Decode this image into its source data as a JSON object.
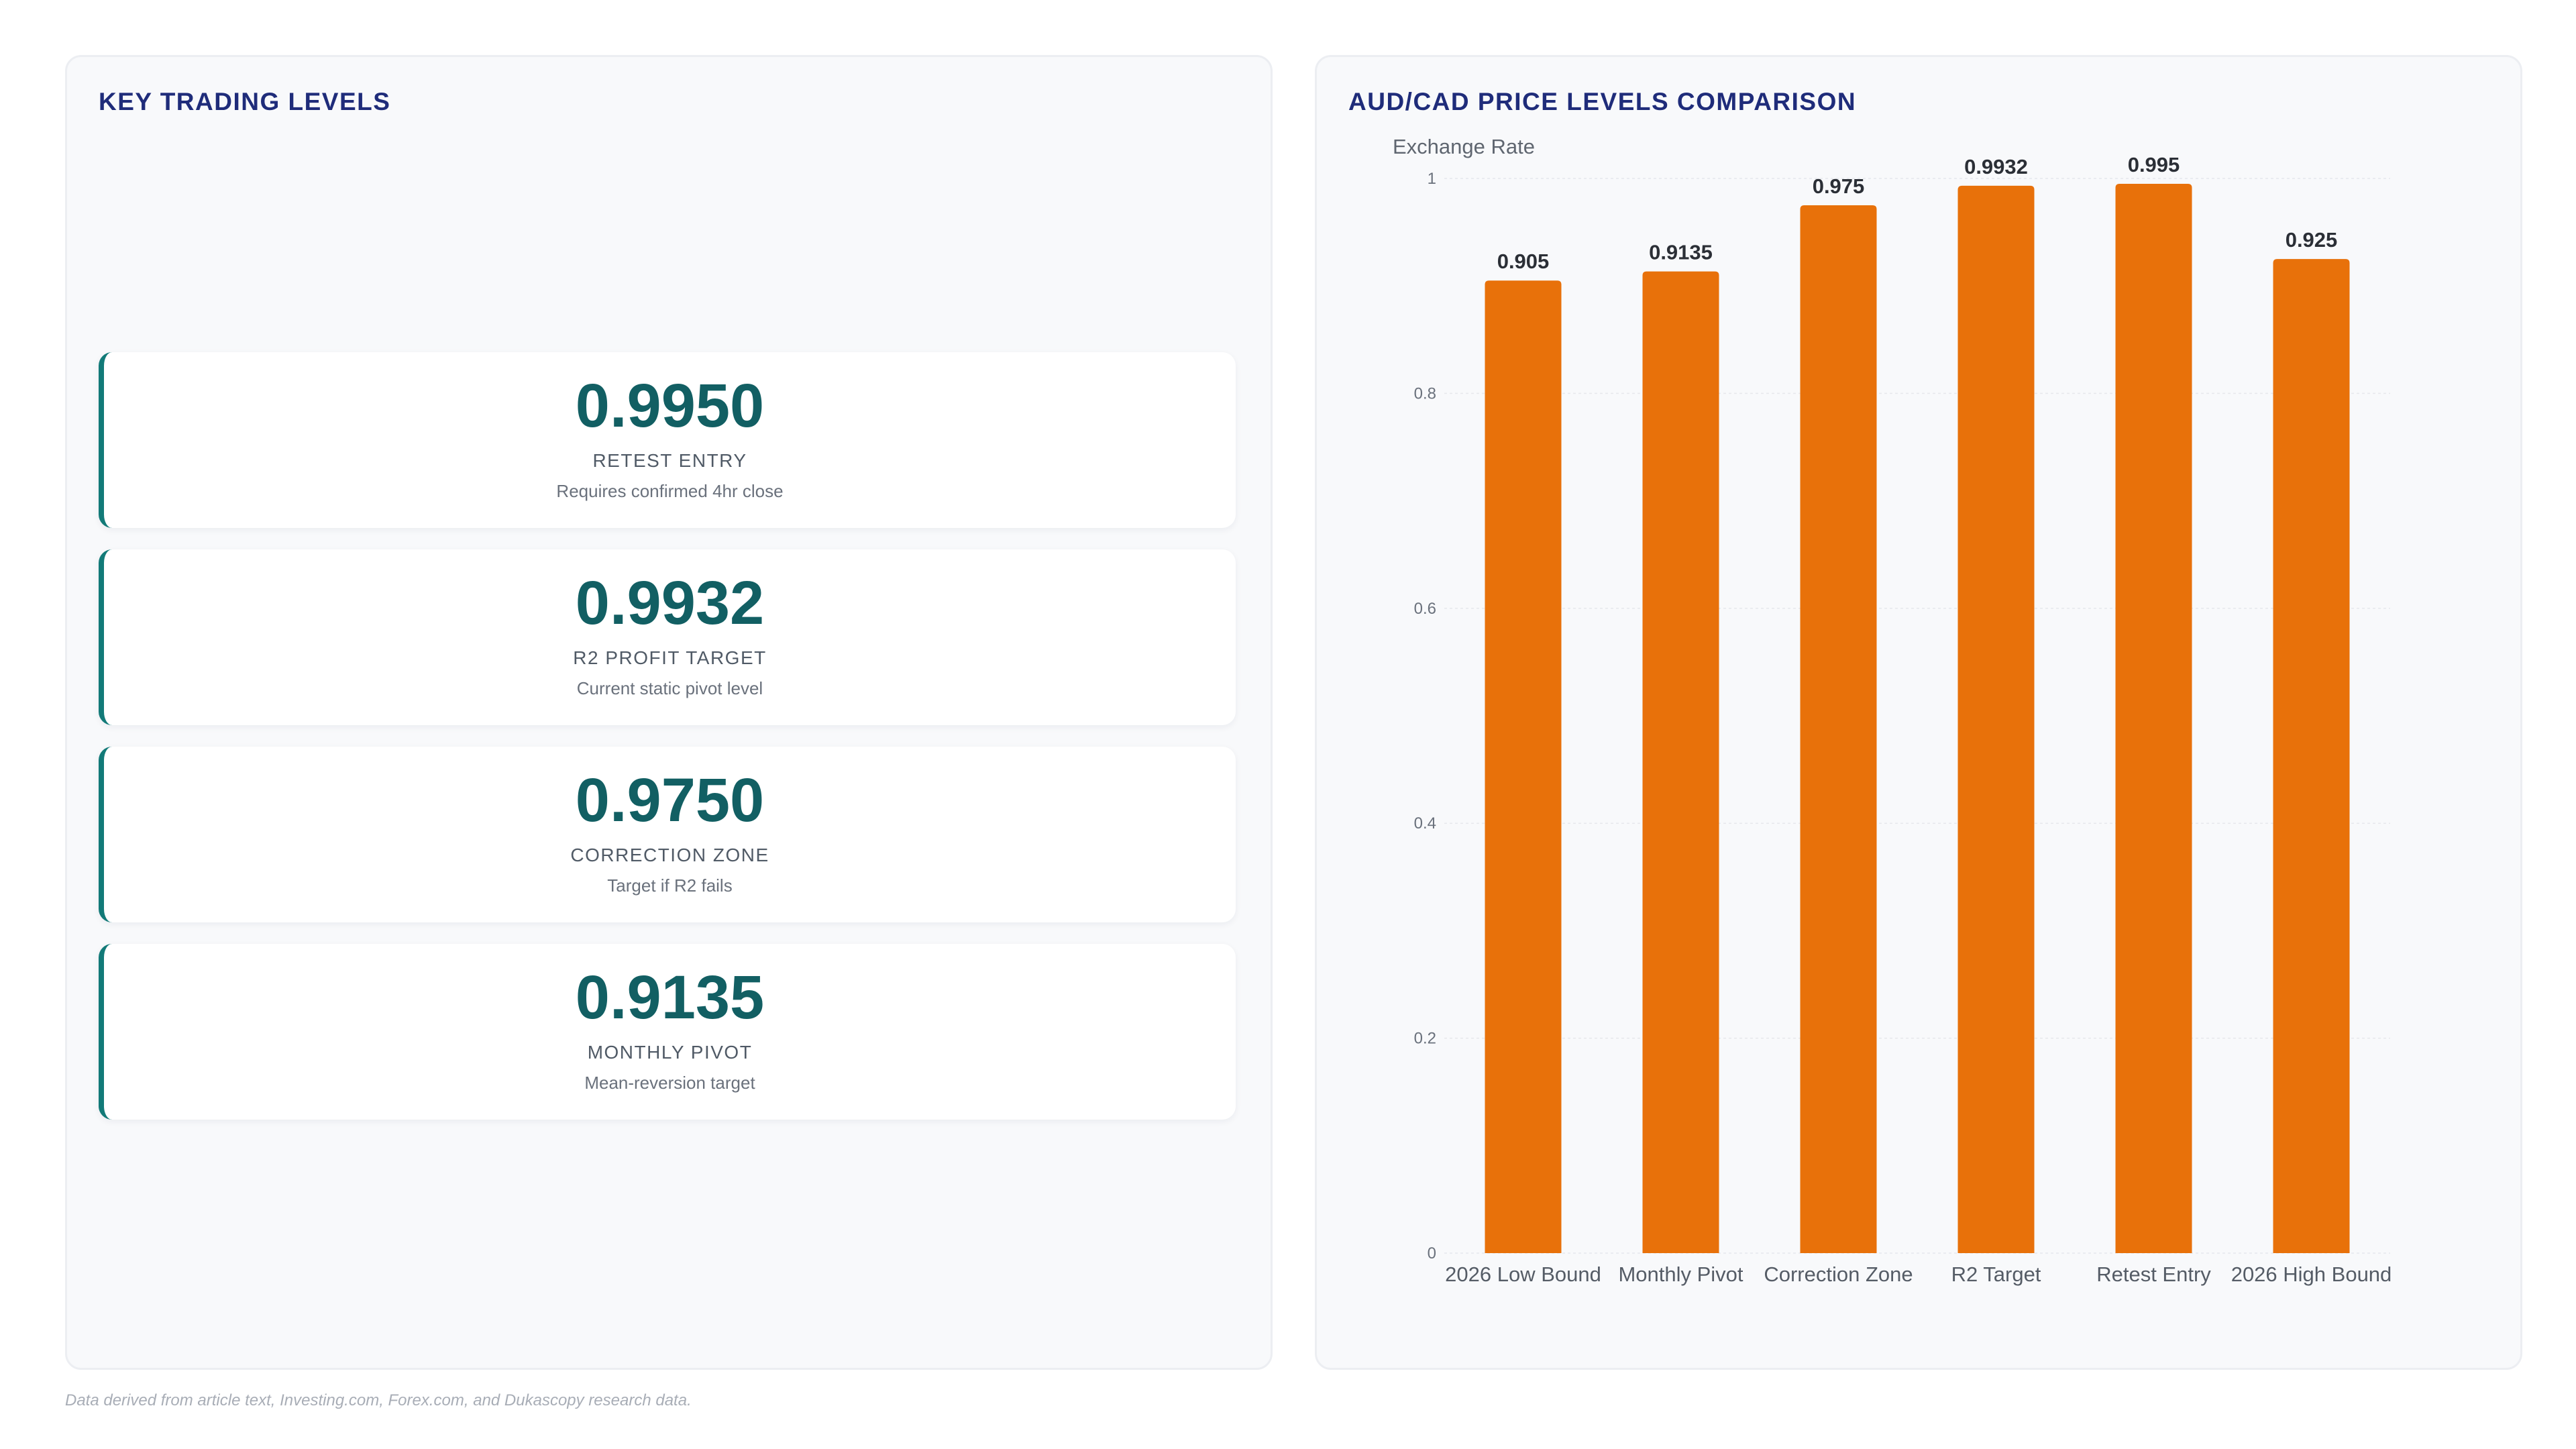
{
  "left_panel": {
    "title": "KEY TRADING LEVELS",
    "cards": [
      {
        "value": "0.9950",
        "label": "RETEST ENTRY",
        "sub": "Requires confirmed 4hr close"
      },
      {
        "value": "0.9932",
        "label": "R2 PROFIT TARGET",
        "sub": "Current static pivot level"
      },
      {
        "value": "0.9750",
        "label": "CORRECTION ZONE",
        "sub": "Target if R2 fails"
      },
      {
        "value": "0.9135",
        "label": "MONTHLY PIVOT",
        "sub": "Mean-reversion target"
      }
    ]
  },
  "right_panel": {
    "title": "AUD/CAD PRICE LEVELS COMPARISON"
  },
  "chart_data": {
    "type": "bar",
    "title": "AUD/CAD PRICE LEVELS COMPARISON",
    "ylabel": "Exchange Rate",
    "xlabel": "",
    "categories": [
      "2026 Low Bound",
      "Monthly Pivot",
      "Correction Zone",
      "R2 Target",
      "Retest Entry",
      "2026 High Bound"
    ],
    "values": [
      0.905,
      0.9135,
      0.975,
      0.9932,
      0.995,
      0.925
    ],
    "data_labels": [
      "0.905",
      "0.9135",
      "0.975",
      "0.9932",
      "0.995",
      "0.925"
    ],
    "ylim": [
      0,
      1
    ],
    "yticks": [
      0,
      0.2,
      0.4,
      0.6,
      0.8,
      1
    ],
    "ytick_labels": [
      "0",
      "0.2",
      "0.4",
      "0.6",
      "0.8",
      "1"
    ],
    "grid": true,
    "legend": "none",
    "bar_color": "#e8710a"
  },
  "footnote": "Data derived from article text, Investing.com, Forex.com, and Dukascopy research data.",
  "colors": {
    "title": "#1f2c7a",
    "card_value": "#125f63",
    "card_accent": "#127a78",
    "bar": "#e8710a"
  }
}
